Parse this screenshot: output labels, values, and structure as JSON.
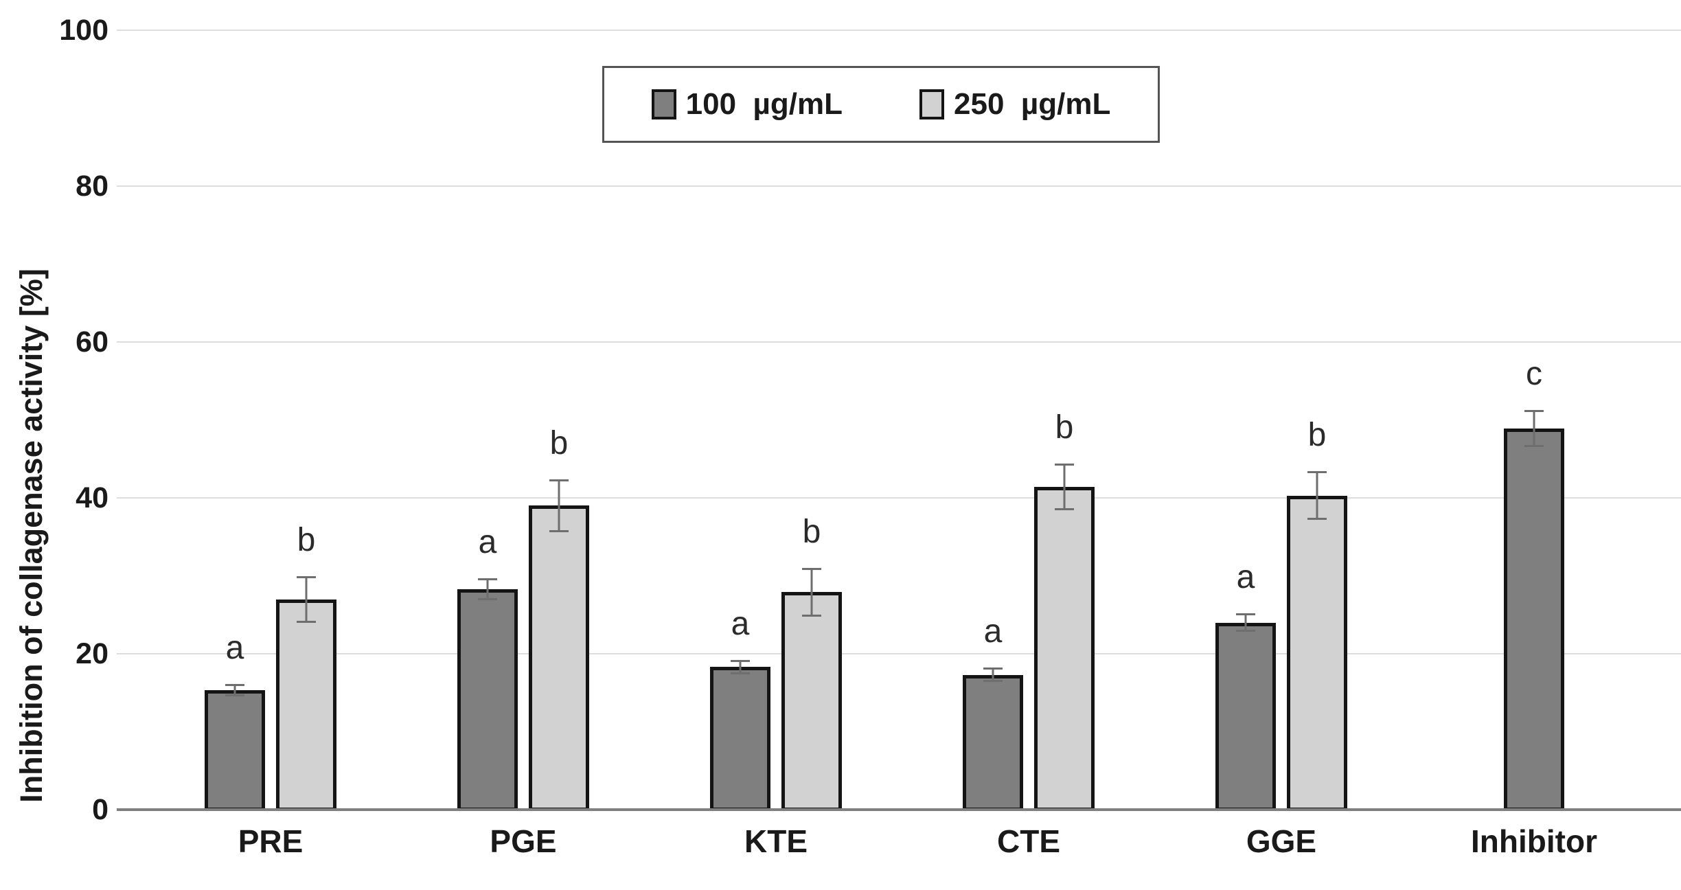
{
  "chart_data": {
    "type": "bar",
    "title": "",
    "xlabel": "",
    "ylabel": "Inhibition of collagenase activity [%]",
    "ylim": [
      0,
      100
    ],
    "yticks": [
      0,
      20,
      40,
      60,
      80,
      100
    ],
    "grid": true,
    "legend_position": "top-center",
    "categories": [
      "PRE",
      "PGE",
      "KTE",
      "CTE",
      "GGE",
      "Inhibitor"
    ],
    "series": [
      {
        "name": "100 µg/mL",
        "color": "#7f7f7f",
        "values": [
          15.3,
          28.3,
          18.3,
          17.3,
          24.0,
          48.9
        ],
        "errors": [
          0.8,
          1.4,
          0.9,
          0.9,
          1.2,
          2.4
        ],
        "letters": [
          "a",
          "a",
          "a",
          "a",
          "a",
          "c"
        ]
      },
      {
        "name": "250 µg/mL",
        "color": "#d2d2d2",
        "values": [
          27.0,
          39.0,
          27.9,
          41.4,
          40.3,
          null
        ],
        "errors": [
          3.0,
          3.4,
          3.1,
          3.0,
          3.1,
          null
        ],
        "letters": [
          "b",
          "b",
          "b",
          "b",
          "b",
          null
        ]
      }
    ],
    "annotation_note_colors": {
      "bar_border": "#141414",
      "error_bar": "#6e6e6e",
      "gridline": "#dddddd",
      "axis_line": "#7f7f7f",
      "text": "#1a1a1a"
    }
  }
}
